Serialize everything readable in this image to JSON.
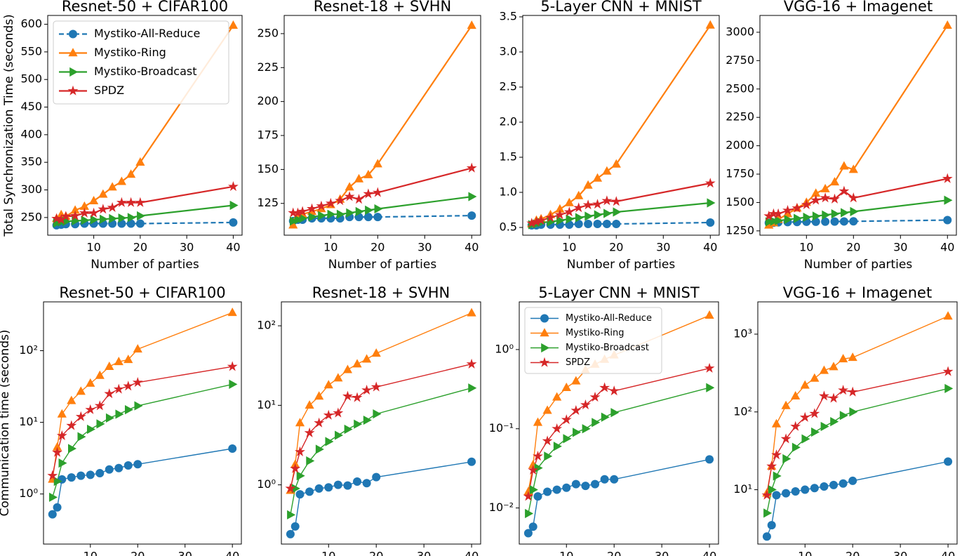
{
  "chart_data": [
    {
      "type": "line",
      "title": "Resnet-50 + CIFAR100",
      "ylabel": "Total Synchronization Time (seconds)",
      "xlabel": "Number of parties",
      "legend": "upper left",
      "x": [
        2,
        3,
        4,
        6,
        8,
        10,
        12,
        14,
        16,
        18,
        20,
        40
      ],
      "xlim": [
        0.1,
        41.9
      ],
      "xticks": [
        10,
        20,
        30,
        40
      ],
      "ylim": [
        218,
        616
      ],
      "yticks": [
        250,
        300,
        350,
        400,
        450,
        500,
        550,
        600
      ],
      "series": [
        {
          "name": "Mystiko-All-Reduce",
          "color": "#1f77b4",
          "marker": "o",
          "linestyle": "--",
          "values": [
            236,
            237,
            238,
            238,
            239,
            239,
            239,
            239,
            239,
            239,
            239,
            241
          ]
        },
        {
          "name": "Mystiko-Ring",
          "color": "#ff7f0e",
          "marker": "^",
          "linestyle": "-",
          "values": [
            248,
            255,
            252,
            263,
            270,
            280,
            292,
            305,
            315,
            328,
            350,
            598
          ]
        },
        {
          "name": "Mystiko-Broadcast",
          "color": "#2ca02c",
          "marker": ">",
          "linestyle": "-",
          "values": [
            240,
            242,
            243,
            244,
            245,
            246,
            247,
            248,
            249,
            250,
            253,
            272
          ]
        },
        {
          "name": "SPDZ",
          "color": "#d62728",
          "marker": "*",
          "linestyle": "-",
          "values": [
            248,
            246,
            252,
            253,
            258,
            258,
            265,
            268,
            277,
            277,
            277,
            306
          ]
        }
      ]
    },
    {
      "type": "line",
      "title": "Resnet-18 + SVHN",
      "xlabel": "Number of parties",
      "x": [
        2,
        3,
        4,
        6,
        8,
        10,
        12,
        14,
        16,
        18,
        20,
        40
      ],
      "xlim": [
        0.1,
        41.9
      ],
      "xticks": [
        10,
        20,
        30,
        40
      ],
      "ylim": [
        101.6,
        263.4
      ],
      "yticks": [
        125,
        150,
        175,
        200,
        225,
        250
      ],
      "series": [
        {
          "color": "#1f77b4",
          "marker": "o",
          "linestyle": "--",
          "values": [
            112,
            113,
            113,
            114,
            114,
            114,
            114,
            115,
            115,
            115,
            115,
            116
          ]
        },
        {
          "color": "#ff7f0e",
          "marker": "^",
          "linestyle": "-",
          "values": [
            109,
            116,
            117,
            119,
            121,
            124,
            128,
            137,
            143,
            146,
            154,
            256
          ]
        },
        {
          "color": "#2ca02c",
          "marker": ">",
          "linestyle": "-",
          "values": [
            112,
            113,
            114,
            115,
            116,
            117,
            117,
            118,
            119,
            120,
            121,
            130
          ]
        },
        {
          "color": "#d62728",
          "marker": "*",
          "linestyle": "-",
          "values": [
            118,
            118,
            119,
            121,
            123,
            125,
            127,
            130,
            128,
            132,
            133,
            151
          ]
        }
      ]
    },
    {
      "type": "line",
      "title": "5-Layer CNN + MNIST",
      "xlabel": "Number of parties",
      "x": [
        2,
        3,
        4,
        6,
        8,
        10,
        12,
        14,
        16,
        18,
        20,
        40
      ],
      "xlim": [
        0.1,
        41.9
      ],
      "xticks": [
        10,
        20,
        30,
        40
      ],
      "ylim": [
        0.39,
        3.52
      ],
      "yticks": [
        0.5,
        {
          "value": 1,
          "label": "1.0"
        },
        1.5,
        {
          "value": 2,
          "label": "2.0"
        },
        2.5,
        {
          "value": 3,
          "label": "3.0"
        },
        3.5
      ],
      "series": [
        {
          "color": "#1f77b4",
          "marker": "o",
          "linestyle": "--",
          "values": [
            0.53,
            0.53,
            0.54,
            0.54,
            0.54,
            0.54,
            0.55,
            0.55,
            0.55,
            0.55,
            0.55,
            0.57
          ]
        },
        {
          "color": "#ff7f0e",
          "marker": "^",
          "linestyle": "-",
          "values": [
            0.55,
            0.6,
            0.62,
            0.68,
            0.76,
            0.85,
            0.95,
            1.1,
            1.2,
            1.3,
            1.4,
            3.38
          ]
        },
        {
          "color": "#2ca02c",
          "marker": ">",
          "linestyle": "-",
          "values": [
            0.54,
            0.55,
            0.57,
            0.58,
            0.6,
            0.62,
            0.64,
            0.66,
            0.68,
            0.7,
            0.72,
            0.85
          ]
        },
        {
          "color": "#d62728",
          "marker": "*",
          "linestyle": "-",
          "values": [
            0.56,
            0.58,
            0.6,
            0.64,
            0.68,
            0.72,
            0.78,
            0.82,
            0.83,
            0.88,
            0.87,
            1.13
          ]
        }
      ]
    },
    {
      "type": "line",
      "title": "VGG-16 + Imagenet",
      "xlabel": "Number of parties",
      "x": [
        2,
        3,
        4,
        6,
        8,
        10,
        12,
        14,
        16,
        18,
        20,
        40
      ],
      "xlim": [
        0.1,
        41.9
      ],
      "xticks": [
        10,
        20,
        30,
        40
      ],
      "ylim": [
        1212,
        3148
      ],
      "yticks": [
        1250,
        1500,
        1750,
        2000,
        2250,
        2500,
        2750,
        3000
      ],
      "series": [
        {
          "color": "#1f77b4",
          "marker": "o",
          "linestyle": "--",
          "values": [
            1320,
            1322,
            1325,
            1327,
            1328,
            1330,
            1330,
            1331,
            1332,
            1333,
            1334,
            1345
          ]
        },
        {
          "color": "#ff7f0e",
          "marker": "^",
          "linestyle": "-",
          "values": [
            1300,
            1320,
            1350,
            1400,
            1450,
            1500,
            1580,
            1620,
            1680,
            1820,
            1790,
            3060
          ]
        },
        {
          "color": "#2ca02c",
          "marker": ">",
          "linestyle": "-",
          "values": [
            1330,
            1335,
            1340,
            1350,
            1360,
            1370,
            1380,
            1390,
            1400,
            1410,
            1420,
            1520
          ]
        },
        {
          "color": "#d62728",
          "marker": "*",
          "linestyle": "-",
          "values": [
            1380,
            1400,
            1400,
            1430,
            1450,
            1480,
            1520,
            1540,
            1530,
            1600,
            1540,
            1710
          ]
        }
      ]
    },
    {
      "type": "line",
      "title": "Resnet-50 + CIFAR100",
      "ylabel": "Communication time (seconds)",
      "xlabel": "Number of parties",
      "log_y": true,
      "x": [
        2,
        3,
        4,
        6,
        8,
        10,
        12,
        14,
        16,
        18,
        20,
        40
      ],
      "xlim": [
        0.1,
        41.9
      ],
      "xticks": [
        10,
        20,
        30,
        40
      ],
      "ylim": [
        0.2,
        480
      ],
      "yticks": [
        {
          "value": 1,
          "label": "10⁰"
        },
        {
          "value": 10,
          "label": "10¹"
        },
        {
          "value": 100,
          "label": "10²"
        }
      ],
      "series": [
        {
          "color": "#1f77b4",
          "marker": "o",
          "linestyle": "-",
          "values": [
            0.52,
            0.65,
            1.6,
            1.7,
            1.8,
            1.85,
            1.95,
            2.2,
            2.3,
            2.5,
            2.6,
            4.3
          ]
        },
        {
          "color": "#ff7f0e",
          "marker": "^",
          "linestyle": "-",
          "values": [
            1.6,
            4.5,
            13,
            20,
            27,
            35,
            45,
            60,
            70,
            75,
            105,
            340
          ]
        },
        {
          "color": "#2ca02c",
          "marker": ">",
          "linestyle": "-",
          "values": [
            0.9,
            1.5,
            2.7,
            4.3,
            6.3,
            8,
            9.5,
            11.5,
            13,
            15,
            17,
            34
          ]
        },
        {
          "color": "#d62728",
          "marker": "*",
          "linestyle": "-",
          "values": [
            1.8,
            3.8,
            6.5,
            9,
            12,
            15,
            17,
            25,
            29,
            32,
            36,
            60
          ]
        }
      ]
    },
    {
      "type": "line",
      "title": "Resnet-18 + SVHN",
      "xlabel": "Number of parties",
      "log_y": true,
      "x": [
        2,
        3,
        4,
        6,
        8,
        10,
        12,
        14,
        16,
        18,
        20,
        40
      ],
      "xlim": [
        0.1,
        41.9
      ],
      "xticks": [
        10,
        20,
        30,
        40
      ],
      "ylim": [
        0.18,
        200
      ],
      "yticks": [
        {
          "value": 1,
          "label": "10⁰"
        },
        {
          "value": 10,
          "label": "10¹"
        },
        {
          "value": 100,
          "label": "10²"
        }
      ],
      "series": [
        {
          "color": "#1f77b4",
          "marker": "o",
          "linestyle": "-",
          "values": [
            0.24,
            0.3,
            0.76,
            0.82,
            0.9,
            0.93,
            1.0,
            0.98,
            1.1,
            1.05,
            1.25,
            1.95
          ]
        },
        {
          "color": "#ff7f0e",
          "marker": "^",
          "linestyle": "-",
          "values": [
            0.85,
            1.8,
            6,
            10,
            13,
            18,
            22,
            28,
            33,
            38,
            45,
            145
          ]
        },
        {
          "color": "#2ca02c",
          "marker": ">",
          "linestyle": "-",
          "values": [
            0.42,
            0.9,
            1.3,
            2,
            2.8,
            3.5,
            4.2,
            5,
            5.8,
            6.5,
            7.8,
            16.5
          ]
        },
        {
          "color": "#d62728",
          "marker": "*",
          "linestyle": "-",
          "values": [
            0.9,
            1.6,
            2.6,
            4.5,
            6,
            7.5,
            8,
            13,
            12.5,
            15.5,
            17,
            33
          ]
        }
      ]
    },
    {
      "type": "line",
      "title": "5-Layer CNN + MNIST",
      "xlabel": "Number of parties",
      "log_y": true,
      "legend": "upper left",
      "x": [
        2,
        3,
        4,
        6,
        8,
        10,
        12,
        14,
        16,
        18,
        20,
        40
      ],
      "xlim": [
        0.1,
        41.9
      ],
      "xticks": [
        10,
        20,
        30,
        40
      ],
      "ylim": [
        0.0035,
        4
      ],
      "yticks": [
        {
          "value": 0.01,
          "label": "10⁻²"
        },
        {
          "value": 0.1,
          "label": "10⁻¹"
        },
        {
          "value": 1,
          "label": "10⁰"
        }
      ],
      "series": [
        {
          "name": "Mystiko-All-Reduce",
          "color": "#1f77b4",
          "marker": "o",
          "linestyle": "-",
          "values": [
            0.0048,
            0.0058,
            0.014,
            0.016,
            0.017,
            0.018,
            0.02,
            0.019,
            0.02,
            0.023,
            0.023,
            0.041
          ]
        },
        {
          "name": "Mystiko-Ring",
          "color": "#ff7f0e",
          "marker": "^",
          "linestyle": "-",
          "values": [
            0.016,
            0.035,
            0.12,
            0.17,
            0.25,
            0.33,
            0.4,
            0.55,
            0.65,
            0.75,
            0.85,
            2.7
          ]
        },
        {
          "name": "Mystiko-Broadcast",
          "color": "#2ca02c",
          "marker": ">",
          "linestyle": "-",
          "values": [
            0.0085,
            0.017,
            0.032,
            0.045,
            0.06,
            0.075,
            0.09,
            0.1,
            0.12,
            0.14,
            0.16,
            0.33
          ]
        },
        {
          "name": "SPDZ",
          "color": "#d62728",
          "marker": "*",
          "linestyle": "-",
          "values": [
            0.014,
            0.03,
            0.045,
            0.07,
            0.1,
            0.13,
            0.17,
            0.2,
            0.25,
            0.33,
            0.3,
            0.58
          ]
        }
      ]
    },
    {
      "type": "line",
      "title": "VGG-16 + Imagenet",
      "xlabel": "Number of parties",
      "log_y": true,
      "x": [
        2,
        3,
        4,
        6,
        8,
        10,
        12,
        14,
        16,
        18,
        20,
        40
      ],
      "xlim": [
        0.1,
        41.9
      ],
      "xticks": [
        10,
        20,
        30,
        40
      ],
      "ylim": [
        2,
        2600
      ],
      "yticks": [
        {
          "value": 10,
          "label": "10¹"
        },
        {
          "value": 100,
          "label": "10²"
        },
        {
          "value": 1000,
          "label": "10³"
        }
      ],
      "series": [
        {
          "color": "#1f77b4",
          "marker": "o",
          "linestyle": "-",
          "values": [
            2.5,
            3.5,
            8.5,
            9,
            9.5,
            10,
            10.5,
            11,
            11.5,
            12,
            13,
            23
          ]
        },
        {
          "color": "#ff7f0e",
          "marker": "^",
          "linestyle": "-",
          "values": [
            9,
            20,
            70,
            120,
            160,
            220,
            270,
            340,
            380,
            480,
            500,
            1700
          ]
        },
        {
          "color": "#2ca02c",
          "marker": ">",
          "linestyle": "-",
          "values": [
            5,
            10,
            15,
            25,
            35,
            45,
            55,
            65,
            75,
            90,
            100,
            200
          ]
        },
        {
          "color": "#d62728",
          "marker": "*",
          "linestyle": "-",
          "values": [
            8.5,
            20,
            28,
            45,
            65,
            85,
            95,
            160,
            150,
            190,
            180,
            330
          ]
        }
      ]
    }
  ]
}
